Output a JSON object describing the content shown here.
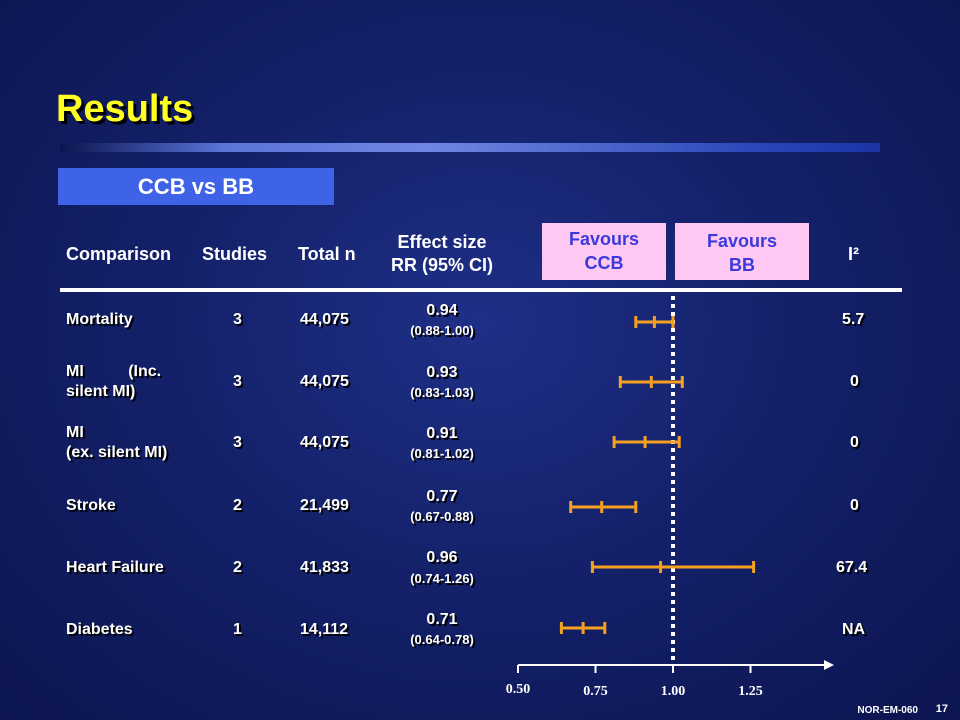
{
  "slide": {
    "title": "Results",
    "subtitle": "CCB vs BB",
    "code": "NOR-EM-060",
    "number": "17"
  },
  "headers": {
    "comparison": "Comparison",
    "studies": "Studies",
    "total_n": "Total n",
    "effect_size_line1": "Effect size",
    "effect_size_line2": "RR (95% CI)",
    "favours_ccb_line1": "Favours",
    "favours_ccb_line2": "CCB",
    "favours_bb_line1": "Favours",
    "favours_bb_line2": "BB",
    "i2": "I²"
  },
  "colors": {
    "marker": "#f5a020",
    "title": "#ffff22",
    "favours_bg": "#ffc8f2",
    "favours_text": "#3a3adc",
    "subtitle_bg": "#3f63e6"
  },
  "rows": [
    {
      "comparison_line1": "Mortality",
      "comparison_line2": "",
      "studies": "3",
      "total_n": "44,075",
      "rr": "0.94",
      "ci": "(0.88-1.00)",
      "i2": "5.7"
    },
    {
      "comparison_line1": "MI          (Inc.",
      "comparison_line2": "silent MI)",
      "studies": "3",
      "total_n": "44,075",
      "rr": "0.93",
      "ci": "(0.83-1.03)",
      "i2": "0"
    },
    {
      "comparison_line1": "MI",
      "comparison_line2": "(ex. silent MI)",
      "studies": "3",
      "total_n": "44,075",
      "rr": "0.91",
      "ci": "(0.81-1.02)",
      "i2": "0"
    },
    {
      "comparison_line1": "Stroke",
      "comparison_line2": "",
      "studies": "2",
      "total_n": "21,499",
      "rr": "0.77",
      "ci": "(0.67-0.88)",
      "i2": "0"
    },
    {
      "comparison_line1": "Heart Failure",
      "comparison_line2": "",
      "studies": "2",
      "total_n": "41,833",
      "rr": "0.96",
      "ci": "(0.74-1.26)",
      "i2": "67.4"
    },
    {
      "comparison_line1": "Diabetes",
      "comparison_line2": "",
      "studies": "1",
      "total_n": "14,112",
      "rr": "0.71",
      "ci": "(0.64-0.78)",
      "i2": "NA"
    }
  ],
  "chart_data": {
    "type": "forest",
    "x_axis": {
      "ticks": [
        0.5,
        0.75,
        1.0,
        1.25
      ],
      "tick_labels": [
        "0.50",
        "0.75",
        "1.00",
        "1.25"
      ],
      "reference_line": 1.0
    },
    "categories": [
      "Mortality",
      "MI (Inc. silent MI)",
      "MI (ex. silent MI)",
      "Stroke",
      "Heart Failure",
      "Diabetes"
    ],
    "estimates": [
      0.94,
      0.93,
      0.91,
      0.77,
      0.96,
      0.71
    ],
    "ci_lower": [
      0.88,
      0.83,
      0.81,
      0.67,
      0.74,
      0.64
    ],
    "ci_upper": [
      1.0,
      1.03,
      1.02,
      0.88,
      1.26,
      0.78
    ]
  }
}
